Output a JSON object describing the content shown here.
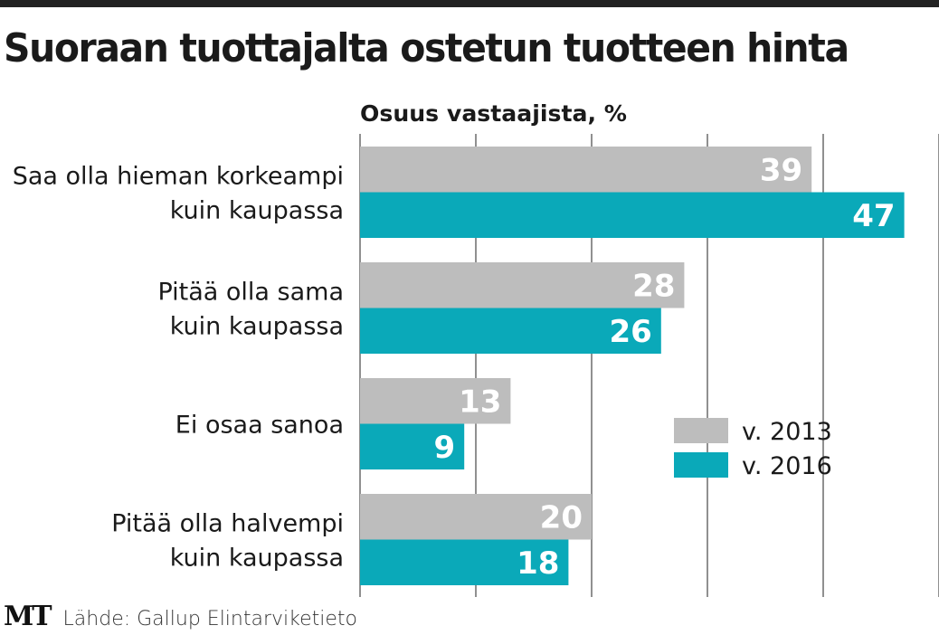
{
  "title": "Suoraan tuottajalta ostetun tuotteen hinta",
  "logo": "MT",
  "source": "Lähde: Gallup Elintarviketieto",
  "chart_data": {
    "type": "bar",
    "orientation": "horizontal",
    "title": "Suoraan tuottajalta ostetun tuotteen hinta",
    "xlabel": "Osuus vastaajista, %",
    "ylabel": "",
    "xlim": [
      0,
      50
    ],
    "grid": true,
    "legend_position": "right",
    "categories": [
      [
        "Saa olla hieman korkeampi",
        "kuin kaupassa"
      ],
      [
        "Pitää olla sama",
        "kuin kaupassa"
      ],
      [
        "Ei osaa sanoa"
      ],
      [
        "Pitää olla halvempi",
        "kuin kaupassa"
      ]
    ],
    "series": [
      {
        "name": "v. 2013",
        "color": "#bdbdbd",
        "values": [
          39,
          28,
          13,
          20
        ]
      },
      {
        "name": "v. 2016",
        "color": "#0aa9b9",
        "values": [
          47,
          26,
          9,
          18
        ]
      }
    ]
  }
}
